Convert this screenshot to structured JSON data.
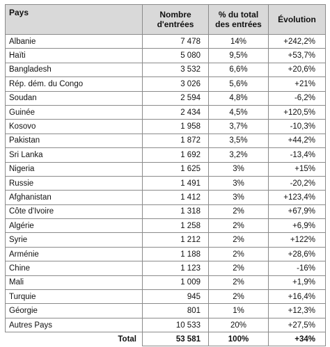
{
  "header": {
    "country": "Pays",
    "entries_line1": "Nombre",
    "entries_line2": "d'entrées",
    "share_line1": "% du total",
    "share_line2": "des entrées",
    "evolution": "Évolution"
  },
  "rows": [
    {
      "country": "Albanie",
      "entries": "7 478",
      "share": "14%",
      "evolution": "+242,2%"
    },
    {
      "country": "Haïti",
      "entries": "5 080",
      "share": "9,5%",
      "evolution": "+53,7%"
    },
    {
      "country": "Bangladesh",
      "entries": "3 532",
      "share": "6,6%",
      "evolution": "+20,6%"
    },
    {
      "country": "Rép. dém. du Congo",
      "entries": "3 026",
      "share": "5,6%",
      "evolution": "+21%"
    },
    {
      "country": "Soudan",
      "entries": "2 594",
      "share": "4,8%",
      "evolution": "-6,2%"
    },
    {
      "country": "Guinée",
      "entries": "2 434",
      "share": "4,5%",
      "evolution": "+120,5%"
    },
    {
      "country": "Kosovo",
      "entries": "1 958",
      "share": "3,7%",
      "evolution": "-10,3%"
    },
    {
      "country": "Pakistan",
      "entries": "1 872",
      "share": "3,5%",
      "evolution": "+44,2%"
    },
    {
      "country": "Sri Lanka",
      "entries": "1 692",
      "share": "3,2%",
      "evolution": "-13,4%"
    },
    {
      "country": "Nigeria",
      "entries": "1 625",
      "share": "3%",
      "evolution": "+15%"
    },
    {
      "country": "Russie",
      "entries": "1 491",
      "share": "3%",
      "evolution": "-20,2%"
    },
    {
      "country": "Afghanistan",
      "entries": "1 412",
      "share": "3%",
      "evolution": "+123,4%"
    },
    {
      "country": "Côte d'Ivoire",
      "entries": "1 318",
      "share": "2%",
      "evolution": "+67,9%"
    },
    {
      "country": "Algérie",
      "entries": "1 258",
      "share": "2%",
      "evolution": "+6,9%"
    },
    {
      "country": "Syrie",
      "entries": "1 212",
      "share": "2%",
      "evolution": "+122%"
    },
    {
      "country": "Arménie",
      "entries": "1 188",
      "share": "2%",
      "evolution": "+28,6%"
    },
    {
      "country": "Chine",
      "entries": "1 123",
      "share": "2%",
      "evolution": "-16%"
    },
    {
      "country": "Mali",
      "entries": "1 009",
      "share": "2%",
      "evolution": "+1,9%"
    },
    {
      "country": "Turquie",
      "entries": "945",
      "share": "2%",
      "evolution": "+16,4%"
    },
    {
      "country": "Géorgie",
      "entries": "801",
      "share": "1%",
      "evolution": "+12,3%"
    },
    {
      "country": "Autres Pays",
      "entries": "10 533",
      "share": "20%",
      "evolution": "+27,5%"
    }
  ],
  "total": {
    "label": "Total",
    "entries": "53 581",
    "share": "100%",
    "evolution": "+34%"
  }
}
